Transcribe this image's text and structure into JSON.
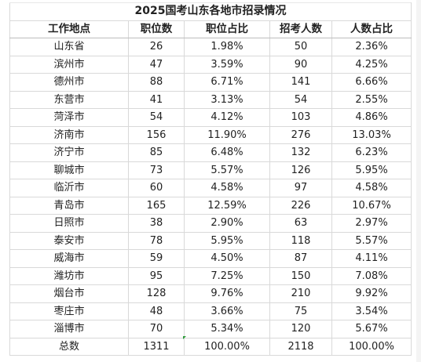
{
  "table": {
    "title": "2025国考山东各地市招录情况",
    "headers": [
      "工作地点",
      "职位数",
      "职位占比",
      "招考人数",
      "人数占比"
    ],
    "rows": [
      [
        "山东省",
        "26",
        "1.98%",
        "50",
        "2.36%"
      ],
      [
        "滨州市",
        "47",
        "3.59%",
        "90",
        "4.25%"
      ],
      [
        "德州市",
        "88",
        "6.71%",
        "141",
        "6.66%"
      ],
      [
        "东营市",
        "41",
        "3.13%",
        "54",
        "2.55%"
      ],
      [
        "菏泽市",
        "54",
        "4.12%",
        "103",
        "4.86%"
      ],
      [
        "济南市",
        "156",
        "11.90%",
        "276",
        "13.03%"
      ],
      [
        "济宁市",
        "85",
        "6.48%",
        "132",
        "6.23%"
      ],
      [
        "聊城市",
        "73",
        "5.57%",
        "126",
        "5.95%"
      ],
      [
        "临沂市",
        "60",
        "4.58%",
        "97",
        "4.58%"
      ],
      [
        "青岛市",
        "165",
        "12.59%",
        "226",
        "10.67%"
      ],
      [
        "日照市",
        "38",
        "2.90%",
        "63",
        "2.97%"
      ],
      [
        "泰安市",
        "78",
        "5.95%",
        "118",
        "5.57%"
      ],
      [
        "威海市",
        "59",
        "4.50%",
        "87",
        "4.11%"
      ],
      [
        "潍坊市",
        "95",
        "7.25%",
        "150",
        "7.08%"
      ],
      [
        "烟台市",
        "128",
        "9.76%",
        "210",
        "9.92%"
      ],
      [
        "枣庄市",
        "48",
        "3.66%",
        "75",
        "3.54%"
      ],
      [
        "淄博市",
        "70",
        "5.34%",
        "120",
        "5.67%"
      ]
    ],
    "total": [
      "总数",
      "1311",
      "100.00%",
      "2118",
      "100.00%"
    ]
  }
}
